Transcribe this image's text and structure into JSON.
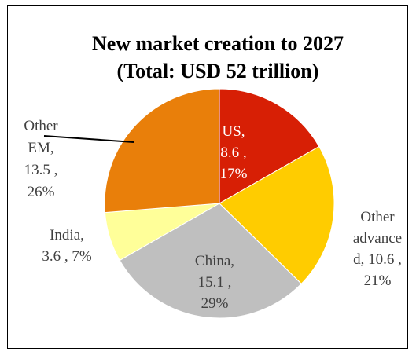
{
  "chart_data": {
    "type": "pie",
    "title": "New market creation to 2027",
    "subtitle": "(Total: USD 52 trillion)",
    "slices": [
      {
        "label": "US",
        "value": 8.6,
        "percent": 17,
        "color": "#d71f05",
        "label_lines": [
          "US,",
          "8.6 ,",
          "17%"
        ],
        "label_color": "#ffffff"
      },
      {
        "label": "Other advanced",
        "value": 10.6,
        "percent": 21,
        "color": "#ffcc00",
        "label_lines": [
          "Other",
          "advance",
          "d, 10.6 ,",
          "21%"
        ],
        "label_color": "#404040"
      },
      {
        "label": "China",
        "value": 15.1,
        "percent": 29,
        "color": "#bfbfbf",
        "label_lines": [
          "China,",
          "15.1 ,",
          "29%"
        ],
        "label_color": "#404040"
      },
      {
        "label": "India",
        "value": 3.6,
        "percent": 7,
        "color": "#ffff99",
        "label_lines": [
          "India,",
          "3.6 , 7%"
        ],
        "label_color": "#404040"
      },
      {
        "label": "Other EM",
        "value": 13.5,
        "percent": 26,
        "color": "#e97f0a",
        "label_lines": [
          "Other",
          "EM,",
          "13.5 ,",
          "26%"
        ],
        "label_color": "#404040"
      }
    ]
  }
}
